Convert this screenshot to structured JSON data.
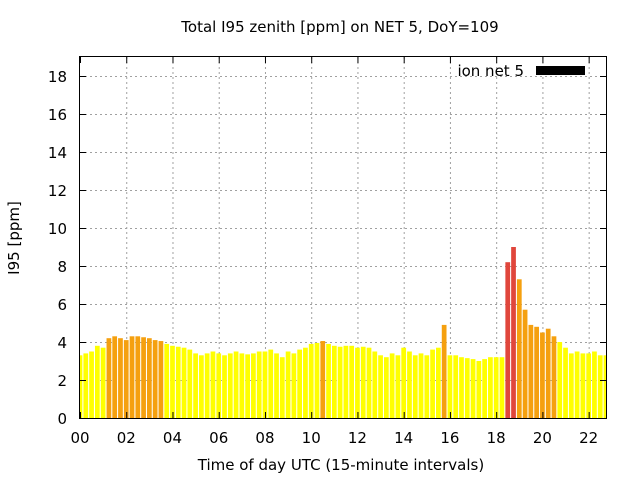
{
  "chart_data": {
    "type": "bar",
    "title": "Total I95 zenith [ppm] on NET 5, DoY=109",
    "xlabel": "Time of day UTC (15-minute intervals)",
    "ylabel": "I95 [ppm]",
    "xlim": [
      0,
      22.75
    ],
    "ylim": [
      0,
      19
    ],
    "xticks": [
      "00",
      "02",
      "04",
      "06",
      "08",
      "10",
      "12",
      "14",
      "16",
      "18",
      "20",
      "22"
    ],
    "yticks": [
      "0",
      "2",
      "4",
      "6",
      "8",
      "10",
      "12",
      "14",
      "16",
      "18"
    ],
    "grid": true,
    "legend": {
      "label": "ion net 5",
      "position": "top-right",
      "color": "#000000"
    },
    "bar_interval_hours": 0.25,
    "level_colors": {
      "low": "#ffff00",
      "medium": "#f5a00f",
      "high": "#e0463c"
    },
    "bars": [
      {
        "t": 0.0,
        "v": 3.3,
        "level": "low"
      },
      {
        "t": 0.25,
        "v": 3.4,
        "level": "low"
      },
      {
        "t": 0.5,
        "v": 3.5,
        "level": "low"
      },
      {
        "t": 0.75,
        "v": 3.8,
        "level": "low"
      },
      {
        "t": 1.0,
        "v": 3.7,
        "level": "low"
      },
      {
        "t": 1.25,
        "v": 4.2,
        "level": "medium"
      },
      {
        "t": 1.5,
        "v": 4.3,
        "level": "medium"
      },
      {
        "t": 1.75,
        "v": 4.2,
        "level": "medium"
      },
      {
        "t": 2.0,
        "v": 4.1,
        "level": "medium"
      },
      {
        "t": 2.25,
        "v": 4.3,
        "level": "medium"
      },
      {
        "t": 2.5,
        "v": 4.3,
        "level": "medium"
      },
      {
        "t": 2.75,
        "v": 4.25,
        "level": "medium"
      },
      {
        "t": 3.0,
        "v": 4.2,
        "level": "medium"
      },
      {
        "t": 3.25,
        "v": 4.1,
        "level": "medium"
      },
      {
        "t": 3.5,
        "v": 4.05,
        "level": "medium"
      },
      {
        "t": 3.75,
        "v": 3.9,
        "level": "low"
      },
      {
        "t": 4.0,
        "v": 3.8,
        "level": "low"
      },
      {
        "t": 4.25,
        "v": 3.75,
        "level": "low"
      },
      {
        "t": 4.5,
        "v": 3.7,
        "level": "low"
      },
      {
        "t": 4.75,
        "v": 3.6,
        "level": "low"
      },
      {
        "t": 5.0,
        "v": 3.4,
        "level": "low"
      },
      {
        "t": 5.25,
        "v": 3.3,
        "level": "low"
      },
      {
        "t": 5.5,
        "v": 3.4,
        "level": "low"
      },
      {
        "t": 5.75,
        "v": 3.5,
        "level": "low"
      },
      {
        "t": 6.0,
        "v": 3.4,
        "level": "low"
      },
      {
        "t": 6.25,
        "v": 3.3,
        "level": "low"
      },
      {
        "t": 6.5,
        "v": 3.4,
        "level": "low"
      },
      {
        "t": 6.75,
        "v": 3.5,
        "level": "low"
      },
      {
        "t": 7.0,
        "v": 3.4,
        "level": "low"
      },
      {
        "t": 7.25,
        "v": 3.35,
        "level": "low"
      },
      {
        "t": 7.5,
        "v": 3.4,
        "level": "low"
      },
      {
        "t": 7.75,
        "v": 3.5,
        "level": "low"
      },
      {
        "t": 8.0,
        "v": 3.5,
        "level": "low"
      },
      {
        "t": 8.25,
        "v": 3.6,
        "level": "low"
      },
      {
        "t": 8.5,
        "v": 3.4,
        "level": "low"
      },
      {
        "t": 8.75,
        "v": 3.2,
        "level": "low"
      },
      {
        "t": 9.0,
        "v": 3.5,
        "level": "low"
      },
      {
        "t": 9.25,
        "v": 3.4,
        "level": "low"
      },
      {
        "t": 9.5,
        "v": 3.6,
        "level": "low"
      },
      {
        "t": 9.75,
        "v": 3.7,
        "level": "low"
      },
      {
        "t": 10.0,
        "v": 3.9,
        "level": "low"
      },
      {
        "t": 10.25,
        "v": 3.95,
        "level": "low"
      },
      {
        "t": 10.5,
        "v": 4.05,
        "level": "medium"
      },
      {
        "t": 10.75,
        "v": 3.9,
        "level": "low"
      },
      {
        "t": 11.0,
        "v": 3.8,
        "level": "low"
      },
      {
        "t": 11.25,
        "v": 3.75,
        "level": "low"
      },
      {
        "t": 11.5,
        "v": 3.8,
        "level": "low"
      },
      {
        "t": 11.75,
        "v": 3.8,
        "level": "low"
      },
      {
        "t": 12.0,
        "v": 3.7,
        "level": "low"
      },
      {
        "t": 12.25,
        "v": 3.75,
        "level": "low"
      },
      {
        "t": 12.5,
        "v": 3.7,
        "level": "low"
      },
      {
        "t": 12.75,
        "v": 3.5,
        "level": "low"
      },
      {
        "t": 13.0,
        "v": 3.3,
        "level": "low"
      },
      {
        "t": 13.25,
        "v": 3.2,
        "level": "low"
      },
      {
        "t": 13.5,
        "v": 3.4,
        "level": "low"
      },
      {
        "t": 13.75,
        "v": 3.3,
        "level": "low"
      },
      {
        "t": 14.0,
        "v": 3.7,
        "level": "low"
      },
      {
        "t": 14.25,
        "v": 3.5,
        "level": "low"
      },
      {
        "t": 14.5,
        "v": 3.3,
        "level": "low"
      },
      {
        "t": 14.75,
        "v": 3.4,
        "level": "low"
      },
      {
        "t": 15.0,
        "v": 3.3,
        "level": "low"
      },
      {
        "t": 15.25,
        "v": 3.6,
        "level": "low"
      },
      {
        "t": 15.5,
        "v": 3.7,
        "level": "low"
      },
      {
        "t": 15.75,
        "v": 4.9,
        "level": "medium"
      },
      {
        "t": 16.0,
        "v": 3.3,
        "level": "low"
      },
      {
        "t": 16.25,
        "v": 3.3,
        "level": "low"
      },
      {
        "t": 16.5,
        "v": 3.2,
        "level": "low"
      },
      {
        "t": 16.75,
        "v": 3.15,
        "level": "low"
      },
      {
        "t": 17.0,
        "v": 3.1,
        "level": "low"
      },
      {
        "t": 17.25,
        "v": 3.0,
        "level": "low"
      },
      {
        "t": 17.5,
        "v": 3.1,
        "level": "low"
      },
      {
        "t": 17.75,
        "v": 3.2,
        "level": "low"
      },
      {
        "t": 18.0,
        "v": 3.2,
        "level": "low"
      },
      {
        "t": 18.25,
        "v": 3.2,
        "level": "low"
      },
      {
        "t": 18.5,
        "v": 8.2,
        "level": "high"
      },
      {
        "t": 18.75,
        "v": 9.0,
        "level": "high"
      },
      {
        "t": 19.0,
        "v": 7.3,
        "level": "medium"
      },
      {
        "t": 19.25,
        "v": 5.7,
        "level": "medium"
      },
      {
        "t": 19.5,
        "v": 4.9,
        "level": "medium"
      },
      {
        "t": 19.75,
        "v": 4.8,
        "level": "medium"
      },
      {
        "t": 20.0,
        "v": 4.5,
        "level": "medium"
      },
      {
        "t": 20.25,
        "v": 4.7,
        "level": "medium"
      },
      {
        "t": 20.5,
        "v": 4.3,
        "level": "medium"
      },
      {
        "t": 20.75,
        "v": 4.0,
        "level": "low"
      },
      {
        "t": 21.0,
        "v": 3.7,
        "level": "low"
      },
      {
        "t": 21.25,
        "v": 3.4,
        "level": "low"
      },
      {
        "t": 21.5,
        "v": 3.5,
        "level": "low"
      },
      {
        "t": 21.75,
        "v": 3.4,
        "level": "low"
      },
      {
        "t": 22.0,
        "v": 3.4,
        "level": "low"
      },
      {
        "t": 22.25,
        "v": 3.5,
        "level": "low"
      },
      {
        "t": 22.5,
        "v": 3.3,
        "level": "low"
      },
      {
        "t": 22.75,
        "v": 3.3,
        "level": "low"
      }
    ]
  }
}
